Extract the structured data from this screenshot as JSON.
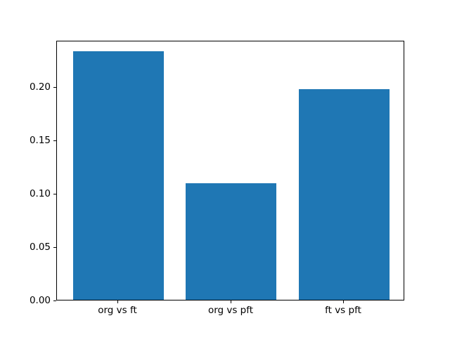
{
  "chart_data": {
    "type": "bar",
    "title": "",
    "xlabel": "",
    "ylabel": "",
    "categories": [
      "org vs ft",
      "org vs pft",
      "ft vs pft"
    ],
    "values": [
      0.233,
      0.109,
      0.197
    ],
    "ylim": [
      0,
      0.2433
    ],
    "yticks": [
      0.0,
      0.05,
      0.1,
      0.15,
      0.2
    ],
    "ytick_labels": [
      "0.00",
      "0.05",
      "0.10",
      "0.15",
      "0.20"
    ],
    "bar_width_fraction": 0.8,
    "bar_color": "#1f77b4",
    "axis_color": "#000000",
    "background_color": "#ffffff",
    "grid": false,
    "legend": null
  }
}
